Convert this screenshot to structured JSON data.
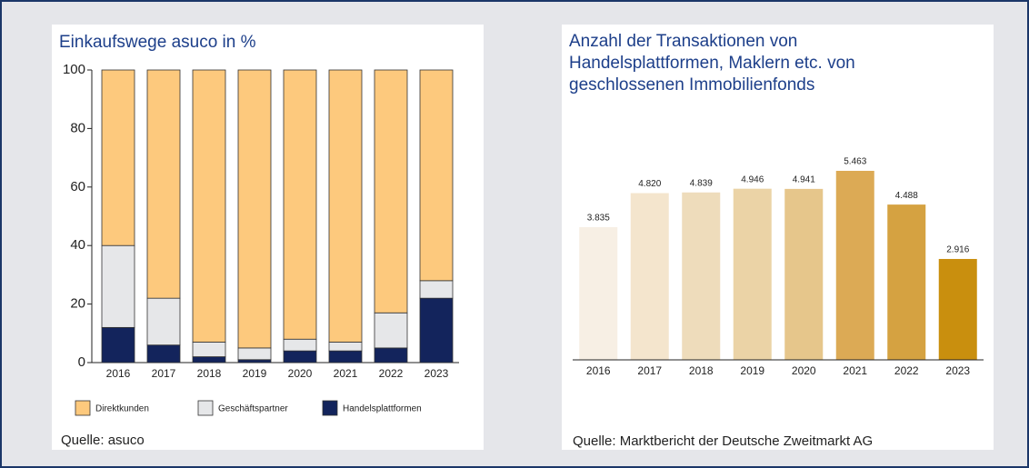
{
  "chart_data": [
    {
      "type": "stacked_bar",
      "title": "Einkaufswege asuco in %",
      "categories": [
        "2016",
        "2017",
        "2018",
        "2019",
        "2020",
        "2021",
        "2022",
        "2023"
      ],
      "series": [
        {
          "name": "Direktkunden",
          "color": "#fdc97d",
          "values": [
            60,
            78,
            93,
            95,
            92,
            93,
            83,
            72
          ]
        },
        {
          "name": "Geschäftspartner",
          "color": "#e6e7e9",
          "values": [
            28,
            16,
            5,
            4,
            4,
            3,
            12,
            6
          ]
        },
        {
          "name": "Handelsplattformen",
          "color": "#13245c",
          "values": [
            12,
            6,
            2,
            1,
            4,
            4,
            5,
            22
          ]
        }
      ],
      "ylim": [
        0,
        100
      ],
      "yticks": [
        0,
        20,
        40,
        60,
        80,
        100
      ],
      "source": "Quelle: asuco"
    },
    {
      "type": "bar",
      "title": [
        "Anzahl der Transaktionen von",
        "Handelsplattformen, Maklern etc. von",
        "geschlossenen Immobilienfonds"
      ],
      "categories": [
        "2016",
        "2017",
        "2018",
        "2019",
        "2020",
        "2021",
        "2022",
        "2023"
      ],
      "values": [
        3835,
        4820,
        4839,
        4946,
        4941,
        5463,
        4488,
        2916
      ],
      "value_labels": [
        "3.835",
        "4.820",
        "4.839",
        "4.946",
        "4.941",
        "5.463",
        "4.488",
        "2.916"
      ],
      "colors": [
        "#f7efe4",
        "#f4e5cd",
        "#eedcbb",
        "#ebd3a6",
        "#e6c68b",
        "#dcaa55",
        "#d5a241",
        "#c98f0e"
      ],
      "source": "Quelle: Marktbericht der Deutsche Zweitmarkt AG"
    }
  ]
}
